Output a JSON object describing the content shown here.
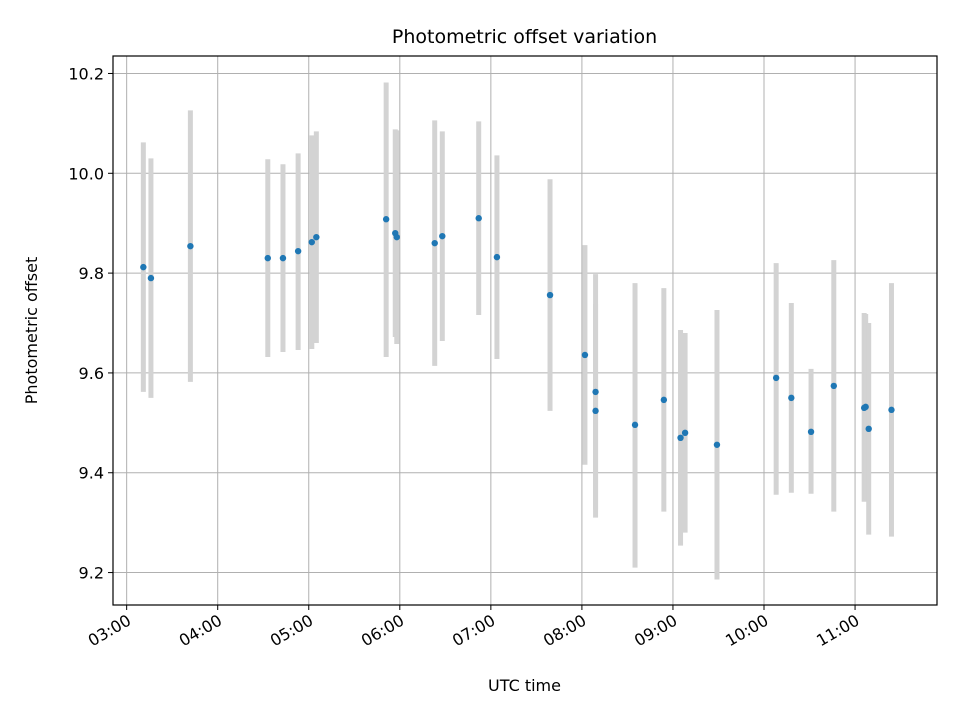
{
  "chart_data": {
    "type": "scatter",
    "title": "Photometric offset variation",
    "xlabel": "UTC time",
    "ylabel": "Photometric offset",
    "x_axis": "time (UTC, hours)",
    "xlim": [
      "02:51",
      "11:54"
    ],
    "ylim": [
      9.135,
      10.235
    ],
    "x_ticks": [
      "03:00",
      "04:00",
      "05:00",
      "06:00",
      "07:00",
      "08:00",
      "09:00",
      "10:00",
      "11:00"
    ],
    "y_ticks": [
      9.2,
      9.4,
      9.6,
      9.8,
      10.0,
      10.2
    ],
    "y_tick_labels": [
      "9.2",
      "9.4",
      "9.6",
      "9.8",
      "10.0",
      "10.2"
    ],
    "grid": true,
    "marker_color": "#1f77b4",
    "errorbar_color": "#d3d3d3",
    "points": [
      {
        "t": "03:11",
        "y": 9.812,
        "ylo": 9.562,
        "yhi": 10.062
      },
      {
        "t": "03:16",
        "y": 9.79,
        "ylo": 9.55,
        "yhi": 10.03
      },
      {
        "t": "03:42",
        "y": 9.854,
        "ylo": 9.582,
        "yhi": 10.126
      },
      {
        "t": "04:33",
        "y": 9.83,
        "ylo": 9.632,
        "yhi": 10.028
      },
      {
        "t": "04:43",
        "y": 9.83,
        "ylo": 9.642,
        "yhi": 10.018
      },
      {
        "t": "04:53",
        "y": 9.844,
        "ylo": 9.646,
        "yhi": 10.04
      },
      {
        "t": "05:02",
        "y": 9.862,
        "ylo": 9.648,
        "yhi": 10.076
      },
      {
        "t": "05:05",
        "y": 9.872,
        "ylo": 9.66,
        "yhi": 10.084
      },
      {
        "t": "05:51",
        "y": 9.908,
        "ylo": 9.632,
        "yhi": 10.182
      },
      {
        "t": "05:57",
        "y": 9.88,
        "ylo": 9.672,
        "yhi": 10.088
      },
      {
        "t": "05:58",
        "y": 9.872,
        "ylo": 9.658,
        "yhi": 10.086
      },
      {
        "t": "06:23",
        "y": 9.86,
        "ylo": 9.614,
        "yhi": 10.106
      },
      {
        "t": "06:28",
        "y": 9.874,
        "ylo": 9.664,
        "yhi": 10.084
      },
      {
        "t": "06:52",
        "y": 9.91,
        "ylo": 9.716,
        "yhi": 10.104
      },
      {
        "t": "07:04",
        "y": 9.832,
        "ylo": 9.628,
        "yhi": 10.036
      },
      {
        "t": "07:39",
        "y": 9.756,
        "ylo": 9.524,
        "yhi": 9.988
      },
      {
        "t": "08:02",
        "y": 9.636,
        "ylo": 9.416,
        "yhi": 9.856
      },
      {
        "t": "08:09",
        "y": 9.562,
        "ylo": 9.326,
        "yhi": 9.798
      },
      {
        "t": "08:09",
        "y": 9.524,
        "ylo": 9.31,
        "yhi": 9.738
      },
      {
        "t": "08:35",
        "y": 9.496,
        "ylo": 9.21,
        "yhi": 9.78
      },
      {
        "t": "08:54",
        "y": 9.546,
        "ylo": 9.322,
        "yhi": 9.77
      },
      {
        "t": "09:05",
        "y": 9.47,
        "ylo": 9.254,
        "yhi": 9.686
      },
      {
        "t": "09:08",
        "y": 9.48,
        "ylo": 9.28,
        "yhi": 9.68
      },
      {
        "t": "09:29",
        "y": 9.456,
        "ylo": 9.186,
        "yhi": 9.726
      },
      {
        "t": "10:08",
        "y": 9.59,
        "ylo": 9.356,
        "yhi": 9.82
      },
      {
        "t": "10:18",
        "y": 9.55,
        "ylo": 9.36,
        "yhi": 9.74
      },
      {
        "t": "10:31",
        "y": 9.482,
        "ylo": 9.358,
        "yhi": 9.608
      },
      {
        "t": "10:46",
        "y": 9.574,
        "ylo": 9.322,
        "yhi": 9.826
      },
      {
        "t": "11:06",
        "y": 9.53,
        "ylo": 9.342,
        "yhi": 9.72
      },
      {
        "t": "11:07",
        "y": 9.532,
        "ylo": 9.346,
        "yhi": 9.718
      },
      {
        "t": "11:09",
        "y": 9.488,
        "ylo": 9.276,
        "yhi": 9.7
      },
      {
        "t": "11:24",
        "y": 9.526,
        "ylo": 9.272,
        "yhi": 9.78
      }
    ]
  }
}
